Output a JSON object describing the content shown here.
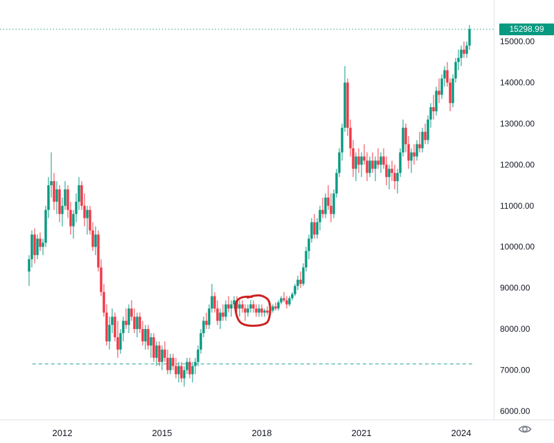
{
  "chart_data": {
    "type": "candlestick",
    "title": "",
    "xlabel": "",
    "ylabel": "",
    "grid": false,
    "legend": "none",
    "xlim": [
      2010.8,
      2024.6
    ],
    "ylim": [
      5900,
      15600
    ],
    "x_ticks": [
      {
        "value": 2012,
        "label": "2012"
      },
      {
        "value": 2015,
        "label": "2015"
      },
      {
        "value": 2018,
        "label": "2018"
      },
      {
        "value": 2021,
        "label": "2021"
      },
      {
        "value": 2024,
        "label": "2024"
      }
    ],
    "y_ticks": [
      {
        "value": 15000,
        "label": "15000.00"
      },
      {
        "value": 14000,
        "label": "14000.00"
      },
      {
        "value": 13000,
        "label": "13000.00"
      },
      {
        "value": 12000,
        "label": "12000.00"
      },
      {
        "value": 11000,
        "label": "11000.00"
      },
      {
        "value": 10000,
        "label": "10000.00"
      },
      {
        "value": 9000,
        "label": "9000.00"
      },
      {
        "value": 8000,
        "label": "8000.00"
      },
      {
        "value": 7000,
        "label": "7000.00"
      },
      {
        "value": 6000,
        "label": "6000.00"
      }
    ],
    "last_price": 15298.99,
    "last_price_label": "15298.99",
    "levels": [
      {
        "value": 15298.99,
        "style": "dotted",
        "color": "#089981",
        "name": "current-price-line"
      },
      {
        "value": 7150,
        "style": "dashed",
        "color": "#089981",
        "name": "support-level-line"
      }
    ],
    "annotation": {
      "shape": "hand-drawn-circle",
      "x_range": [
        2017.2,
        2018.25
      ],
      "price_range": [
        8100,
        8800
      ],
      "color": "#cc2222"
    },
    "colors": {
      "up": "#089981",
      "down": "#f23645",
      "axis_text": "#131722",
      "axis_line": "#e0e3eb",
      "badge_bg": "#089981",
      "badge_text": "#ffffff",
      "icon": "#787b86"
    },
    "candles": [
      [
        2011.0,
        9400,
        9800,
        9050,
        9700
      ],
      [
        2011.083,
        9700,
        10400,
        9500,
        10300
      ],
      [
        2011.167,
        10300,
        10450,
        9600,
        9800
      ],
      [
        2011.25,
        9800,
        10300,
        9700,
        10200
      ],
      [
        2011.333,
        10200,
        10350,
        9900,
        10000
      ],
      [
        2011.417,
        10000,
        10200,
        9800,
        10100
      ],
      [
        2011.5,
        10100,
        11000,
        10000,
        10900
      ],
      [
        2011.583,
        10900,
        11700,
        10700,
        11500
      ],
      [
        2011.667,
        11500,
        12300,
        11200,
        11600
      ],
      [
        2011.75,
        11600,
        11800,
        10900,
        11100
      ],
      [
        2011.833,
        11100,
        11600,
        10800,
        11400
      ],
      [
        2011.917,
        11400,
        11500,
        10600,
        10800
      ],
      [
        2012.0,
        10800,
        11200,
        10500,
        11000
      ],
      [
        2012.083,
        11000,
        11600,
        10900,
        11400
      ],
      [
        2012.167,
        11400,
        11500,
        10700,
        10900
      ],
      [
        2012.25,
        10900,
        11100,
        10300,
        10500
      ],
      [
        2012.333,
        10500,
        10900,
        10200,
        10800
      ],
      [
        2012.417,
        10800,
        11300,
        10600,
        11100
      ],
      [
        2012.5,
        11100,
        11700,
        10900,
        11500
      ],
      [
        2012.583,
        11500,
        11600,
        10900,
        11000
      ],
      [
        2012.667,
        11000,
        11300,
        10500,
        10700
      ],
      [
        2012.75,
        10700,
        11000,
        10300,
        10900
      ],
      [
        2012.833,
        10900,
        11000,
        10300,
        10400
      ],
      [
        2012.917,
        10400,
        10600,
        9900,
        10000
      ],
      [
        2013.0,
        10000,
        10500,
        9800,
        10300
      ],
      [
        2013.083,
        10300,
        10400,
        9400,
        9500
      ],
      [
        2013.167,
        9500,
        9700,
        8800,
        8900
      ],
      [
        2013.25,
        8900,
        9100,
        8300,
        8400
      ],
      [
        2013.333,
        8400,
        8600,
        7600,
        7700
      ],
      [
        2013.417,
        7700,
        8300,
        7500,
        8100
      ],
      [
        2013.5,
        8100,
        8500,
        7900,
        8300
      ],
      [
        2013.583,
        8300,
        8400,
        7700,
        7800
      ],
      [
        2013.667,
        7800,
        8200,
        7300,
        7500
      ],
      [
        2013.75,
        7500,
        8000,
        7400,
        7900
      ],
      [
        2013.833,
        7900,
        8300,
        7700,
        8200
      ],
      [
        2013.917,
        8200,
        8500,
        8000,
        8100
      ],
      [
        2014.0,
        8100,
        8600,
        7900,
        8500
      ],
      [
        2014.083,
        8500,
        8700,
        8200,
        8300
      ],
      [
        2014.167,
        8300,
        8500,
        7900,
        8000
      ],
      [
        2014.25,
        8000,
        8400,
        7800,
        8300
      ],
      [
        2014.333,
        8300,
        8400,
        7900,
        8000
      ],
      [
        2014.417,
        8000,
        8200,
        7600,
        7700
      ],
      [
        2014.5,
        7700,
        8100,
        7500,
        8000
      ],
      [
        2014.583,
        8000,
        8100,
        7500,
        7600
      ],
      [
        2014.667,
        7600,
        7900,
        7300,
        7800
      ],
      [
        2014.75,
        7800,
        7900,
        7200,
        7300
      ],
      [
        2014.833,
        7300,
        7700,
        7100,
        7600
      ],
      [
        2014.917,
        7600,
        7700,
        7100,
        7200
      ],
      [
        2015.0,
        7200,
        7600,
        7000,
        7500
      ],
      [
        2015.083,
        7500,
        7700,
        7200,
        7300
      ],
      [
        2015.167,
        7300,
        7500,
        6900,
        7000
      ],
      [
        2015.25,
        7000,
        7400,
        6900,
        7300
      ],
      [
        2015.333,
        7300,
        7400,
        7000,
        7100
      ],
      [
        2015.417,
        7100,
        7300,
        6800,
        6900
      ],
      [
        2015.5,
        6900,
        7200,
        6700,
        7100
      ],
      [
        2015.583,
        7100,
        7200,
        6700,
        6800
      ],
      [
        2015.667,
        6800,
        7100,
        6600,
        7000
      ],
      [
        2015.75,
        7000,
        7300,
        6900,
        7200
      ],
      [
        2015.833,
        7200,
        7300,
        6800,
        6900
      ],
      [
        2015.917,
        6900,
        7200,
        6700,
        7100
      ],
      [
        2016.0,
        7100,
        7300,
        6900,
        7200
      ],
      [
        2016.083,
        7200,
        7600,
        7100,
        7500
      ],
      [
        2016.167,
        7500,
        8000,
        7400,
        7900
      ],
      [
        2016.25,
        7900,
        8300,
        7800,
        8200
      ],
      [
        2016.333,
        8200,
        8400,
        8000,
        8100
      ],
      [
        2016.417,
        8100,
        8600,
        8000,
        8500
      ],
      [
        2016.5,
        8500,
        9100,
        8400,
        8800
      ],
      [
        2016.583,
        8800,
        8900,
        8400,
        8500
      ],
      [
        2016.667,
        8500,
        8700,
        8100,
        8200
      ],
      [
        2016.75,
        8200,
        8500,
        8000,
        8400
      ],
      [
        2016.833,
        8400,
        8600,
        8200,
        8300
      ],
      [
        2016.917,
        8300,
        8700,
        8200,
        8600
      ],
      [
        2017.0,
        8600,
        8800,
        8400,
        8500
      ],
      [
        2017.083,
        8500,
        8700,
        8300,
        8600
      ],
      [
        2017.167,
        8600,
        8800,
        8500,
        8700
      ],
      [
        2017.25,
        8700,
        8800,
        8400,
        8500
      ],
      [
        2017.333,
        8500,
        8700,
        8300,
        8600
      ],
      [
        2017.417,
        8600,
        8700,
        8400,
        8500
      ],
      [
        2017.5,
        8500,
        8600,
        8200,
        8400
      ],
      [
        2017.583,
        8400,
        8600,
        8300,
        8500
      ],
      [
        2017.667,
        8500,
        8700,
        8400,
        8600
      ],
      [
        2017.75,
        8600,
        8700,
        8400,
        8500
      ],
      [
        2017.833,
        8500,
        8600,
        8300,
        8400
      ],
      [
        2017.917,
        8400,
        8600,
        8300,
        8500
      ],
      [
        2018.0,
        8500,
        8600,
        8300,
        8400
      ],
      [
        2018.083,
        8400,
        8500,
        8300,
        8450
      ],
      [
        2018.167,
        8450,
        8550,
        8350,
        8400
      ],
      [
        2018.25,
        8400,
        8500,
        8300,
        8450
      ],
      [
        2018.333,
        8450,
        8600,
        8400,
        8550
      ],
      [
        2018.417,
        8550,
        8650,
        8450,
        8500
      ],
      [
        2018.5,
        8500,
        8700,
        8450,
        8650
      ],
      [
        2018.583,
        8650,
        8800,
        8600,
        8750
      ],
      [
        2018.667,
        8750,
        8900,
        8650,
        8700
      ],
      [
        2018.75,
        8700,
        8800,
        8500,
        8600
      ],
      [
        2018.833,
        8600,
        8800,
        8550,
        8750
      ],
      [
        2018.917,
        8750,
        8900,
        8700,
        8850
      ],
      [
        2019.0,
        8850,
        9100,
        8800,
        9050
      ],
      [
        2019.083,
        9050,
        9300,
        8950,
        9200
      ],
      [
        2019.167,
        9200,
        9400,
        9000,
        9100
      ],
      [
        2019.25,
        9100,
        9600,
        9050,
        9500
      ],
      [
        2019.333,
        9500,
        10000,
        9400,
        9900
      ],
      [
        2019.417,
        9900,
        10300,
        9700,
        10200
      ],
      [
        2019.5,
        10200,
        10700,
        10100,
        10600
      ],
      [
        2019.583,
        10600,
        10800,
        10200,
        10300
      ],
      [
        2019.667,
        10300,
        10700,
        10200,
        10600
      ],
      [
        2019.75,
        10600,
        11000,
        10400,
        10900
      ],
      [
        2019.833,
        10900,
        11200,
        10700,
        10800
      ],
      [
        2019.917,
        10800,
        11300,
        10700,
        11200
      ],
      [
        2020.0,
        11200,
        11500,
        10900,
        11000
      ],
      [
        2020.083,
        11000,
        11300,
        10600,
        10800
      ],
      [
        2020.167,
        10800,
        11400,
        10700,
        11300
      ],
      [
        2020.25,
        11300,
        11900,
        11200,
        11800
      ],
      [
        2020.333,
        11800,
        12400,
        11700,
        12300
      ],
      [
        2020.417,
        12300,
        13000,
        12100,
        12900
      ],
      [
        2020.5,
        12900,
        14400,
        12800,
        14000
      ],
      [
        2020.583,
        14000,
        14100,
        12700,
        12900
      ],
      [
        2020.667,
        12900,
        13100,
        12200,
        12400
      ],
      [
        2020.75,
        12400,
        12600,
        11700,
        11900
      ],
      [
        2020.833,
        11900,
        12300,
        11600,
        12200
      ],
      [
        2020.917,
        12200,
        12400,
        11800,
        12000
      ],
      [
        2021.0,
        12000,
        12300,
        11700,
        12200
      ],
      [
        2021.083,
        12200,
        12500,
        12000,
        12100
      ],
      [
        2021.167,
        12100,
        12300,
        11600,
        11800
      ],
      [
        2021.25,
        11800,
        12200,
        11700,
        12100
      ],
      [
        2021.333,
        12100,
        12300,
        11800,
        11900
      ],
      [
        2021.417,
        11900,
        12200,
        11600,
        12100
      ],
      [
        2021.5,
        12100,
        12400,
        11900,
        12000
      ],
      [
        2021.583,
        12000,
        12300,
        11800,
        12200
      ],
      [
        2021.667,
        12200,
        12400,
        11900,
        12000
      ],
      [
        2021.75,
        12000,
        12200,
        11500,
        11700
      ],
      [
        2021.833,
        11700,
        12000,
        11400,
        11900
      ],
      [
        2021.917,
        11900,
        12100,
        11600,
        11800
      ],
      [
        2022.0,
        11800,
        12000,
        11400,
        11600
      ],
      [
        2022.083,
        11600,
        11900,
        11300,
        11800
      ],
      [
        2022.167,
        11800,
        12400,
        11700,
        12300
      ],
      [
        2022.25,
        12300,
        13100,
        12200,
        12900
      ],
      [
        2022.333,
        12900,
        13000,
        12300,
        12500
      ],
      [
        2022.417,
        12500,
        12700,
        11900,
        12100
      ],
      [
        2022.5,
        12100,
        12400,
        11800,
        12300
      ],
      [
        2022.583,
        12300,
        12500,
        12000,
        12200
      ],
      [
        2022.667,
        12200,
        12600,
        12100,
        12500
      ],
      [
        2022.75,
        12500,
        12800,
        12300,
        12400
      ],
      [
        2022.833,
        12400,
        12900,
        12300,
        12800
      ],
      [
        2022.917,
        12800,
        13000,
        12500,
        12600
      ],
      [
        2023.0,
        12600,
        13200,
        12500,
        13100
      ],
      [
        2023.083,
        13100,
        13500,
        12900,
        13400
      ],
      [
        2023.167,
        13400,
        13700,
        13100,
        13300
      ],
      [
        2023.25,
        13300,
        13900,
        13200,
        13800
      ],
      [
        2023.333,
        13800,
        14100,
        13500,
        13700
      ],
      [
        2023.417,
        13700,
        14200,
        13600,
        14100
      ],
      [
        2023.5,
        14100,
        14400,
        13900,
        14300
      ],
      [
        2023.583,
        14300,
        14500,
        13900,
        14000
      ],
      [
        2023.667,
        14000,
        14100,
        13300,
        13500
      ],
      [
        2023.75,
        13500,
        14200,
        13400,
        14100
      ],
      [
        2023.833,
        14100,
        14600,
        14000,
        14500
      ],
      [
        2023.917,
        14500,
        14800,
        14300,
        14600
      ],
      [
        2024.0,
        14600,
        14900,
        14400,
        14800
      ],
      [
        2024.083,
        14800,
        15000,
        14600,
        14700
      ],
      [
        2024.167,
        14700,
        15000,
        14600,
        14900
      ],
      [
        2024.25,
        14900,
        15400,
        14800,
        15298.99
      ]
    ]
  }
}
